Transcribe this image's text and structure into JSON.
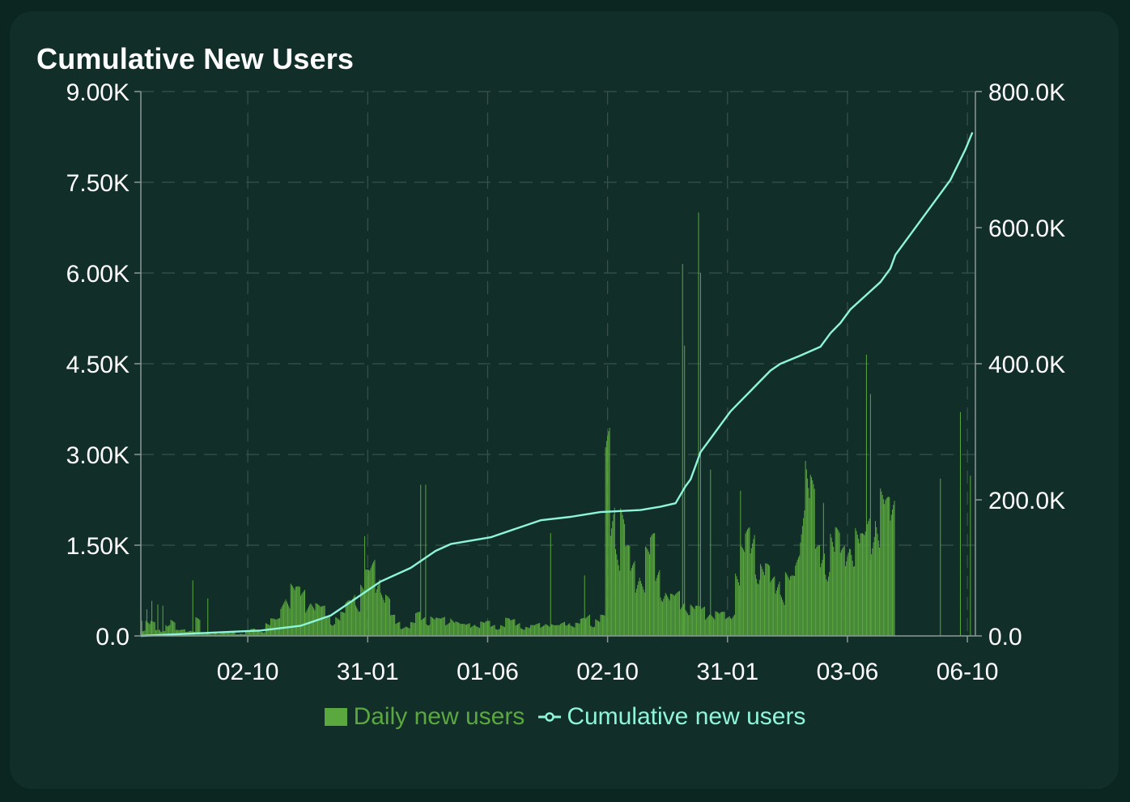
{
  "title": "Cumulative New Users",
  "colors": {
    "background": "#0b2621",
    "card": "#112e29",
    "bars": "#5aa83e",
    "line": "#8ff5da",
    "axis": "#8a9a95",
    "grid": "#3a524c",
    "text": "#ffffff"
  },
  "legend": {
    "daily_label": "Daily new users",
    "cumulative_label": "Cumulative new users"
  },
  "chart_data": {
    "type": "bar",
    "title": "Cumulative New Users",
    "x_tick_labels": [
      "02-10",
      "31-01",
      "01-06",
      "02-10",
      "31-01",
      "03-06",
      "06-10"
    ],
    "x_tick_positions": [
      27,
      147,
      267,
      387,
      507,
      627,
      747
    ],
    "x_range": [
      -80,
      755
    ],
    "left_axis": {
      "ylim": [
        0,
        9000
      ],
      "tick_values": [
        0,
        1500,
        3000,
        4500,
        6000,
        7500,
        9000
      ],
      "tick_labels": [
        "0.0",
        "1.50K",
        "3.00K",
        "4.50K",
        "6.00K",
        "7.50K",
        "9.00K"
      ]
    },
    "right_axis": {
      "ylim": [
        0,
        800000
      ],
      "tick_values": [
        0,
        200000,
        400000,
        600000,
        800000
      ],
      "tick_labels": [
        "0.0",
        "200.0K",
        "400.0K",
        "600.0K",
        "800.0K"
      ]
    },
    "grid": true,
    "legend_position": "bottom",
    "series": [
      {
        "name": "Daily new users",
        "axis": "left",
        "kind": "bar",
        "x_start": -80,
        "x_step": 5,
        "values": [
          120,
          300,
          250,
          100,
          90,
          280,
          300,
          100,
          110,
          95,
          120,
          330,
          40,
          45,
          50,
          50,
          60,
          50,
          60,
          45,
          40,
          70,
          120,
          110,
          100,
          230,
          290,
          300,
          700,
          800,
          900,
          820,
          800,
          700,
          650,
          550,
          500,
          380,
          300,
          350,
          400,
          600,
          800,
          700,
          900,
          1100,
          1300,
          1200,
          900,
          700,
          350,
          250,
          200,
          180,
          230,
          400,
          350,
          300,
          350,
          300,
          320,
          270,
          380,
          250,
          200,
          220,
          250,
          200,
          240,
          250,
          200,
          180,
          200,
          300,
          280,
          250,
          180,
          160,
          180,
          220,
          230,
          250,
          200,
          180,
          250,
          300,
          200,
          220,
          300,
          400,
          250,
          300,
          350,
          3500,
          2600,
          1900,
          2200,
          1500,
          1300,
          1300,
          1100,
          1500,
          1700,
          1200,
          1000,
          800,
          700,
          750,
          650,
          600,
          550,
          500,
          500,
          450,
          450,
          420,
          400,
          350,
          500,
          1200,
          1500,
          1800,
          1900,
          1500,
          1300,
          1200,
          1000,
          1100,
          900,
          1100,
          1000,
          1400,
          2800,
          3500,
          2700,
          1500,
          1500,
          1600,
          1900,
          1800,
          1500,
          1700,
          2000,
          1900,
          1700,
          2000,
          2100,
          2400,
          2500,
          2300,
          2400
        ],
        "peaks": [
          {
            "x": -79,
            "value": 250
          },
          {
            "x": -74,
            "value": 440
          },
          {
            "x": -69,
            "value": 580
          },
          {
            "x": -63,
            "value": 520
          },
          {
            "x": -58,
            "value": 500
          },
          {
            "x": -28,
            "value": 920
          },
          {
            "x": -13,
            "value": 620
          },
          {
            "x": 144,
            "value": 1650
          },
          {
            "x": 200,
            "value": 2500
          },
          {
            "x": 205,
            "value": 2500
          },
          {
            "x": 330,
            "value": 1700
          },
          {
            "x": 364,
            "value": 1000
          },
          {
            "x": 440,
            "value": 550
          },
          {
            "x": 462,
            "value": 6150
          },
          {
            "x": 464,
            "value": 4800
          },
          {
            "x": 478,
            "value": 7000
          },
          {
            "x": 480,
            "value": 6000
          },
          {
            "x": 490,
            "value": 2750
          },
          {
            "x": 520,
            "value": 2400
          },
          {
            "x": 603,
            "value": 2200
          },
          {
            "x": 646,
            "value": 4650
          },
          {
            "x": 650,
            "value": 4000
          },
          {
            "x": 720,
            "value": 2600
          },
          {
            "x": 740,
            "value": 3700
          },
          {
            "x": 750,
            "value": 2650
          }
        ]
      },
      {
        "name": "Cumulative new users",
        "axis": "right",
        "kind": "line",
        "points": [
          [
            -80,
            0
          ],
          [
            -20,
            4000
          ],
          [
            40,
            8000
          ],
          [
            80,
            15000
          ],
          [
            110,
            30000
          ],
          [
            130,
            50000
          ],
          [
            160,
            80000
          ],
          [
            190,
            100000
          ],
          [
            205,
            115000
          ],
          [
            215,
            125000
          ],
          [
            230,
            135000
          ],
          [
            270,
            145000
          ],
          [
            300,
            160000
          ],
          [
            320,
            170000
          ],
          [
            350,
            175000
          ],
          [
            380,
            182000
          ],
          [
            420,
            185000
          ],
          [
            440,
            190000
          ],
          [
            455,
            195000
          ],
          [
            465,
            220000
          ],
          [
            470,
            230000
          ],
          [
            475,
            250000
          ],
          [
            480,
            270000
          ],
          [
            490,
            290000
          ],
          [
            500,
            310000
          ],
          [
            510,
            330000
          ],
          [
            520,
            345000
          ],
          [
            530,
            360000
          ],
          [
            540,
            375000
          ],
          [
            550,
            390000
          ],
          [
            560,
            400000
          ],
          [
            580,
            412000
          ],
          [
            600,
            425000
          ],
          [
            610,
            445000
          ],
          [
            620,
            460000
          ],
          [
            630,
            480000
          ],
          [
            645,
            500000
          ],
          [
            660,
            520000
          ],
          [
            670,
            540000
          ],
          [
            675,
            560000
          ],
          [
            690,
            590000
          ],
          [
            710,
            630000
          ],
          [
            730,
            670000
          ],
          [
            745,
            715000
          ],
          [
            752,
            740000
          ]
        ]
      }
    ]
  }
}
